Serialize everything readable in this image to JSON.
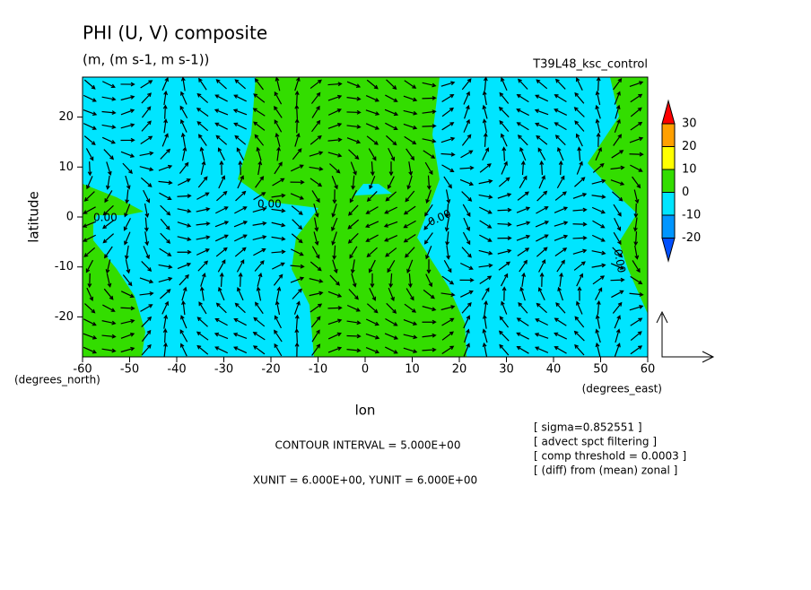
{
  "chart_data": {
    "type": "contour",
    "title": "PHI (U, V) composite",
    "subtitle": "(m, (m s-1, m s-1))",
    "run_label": "T39L48_ksc_control",
    "x_label": "lon",
    "y_label": "latitude",
    "x_units": "(degrees_east)",
    "y_units": "(degrees_north)",
    "xlim": [
      -60,
      60
    ],
    "xticks": [
      -60,
      -50,
      -40,
      -30,
      -20,
      -10,
      0,
      10,
      20,
      30,
      40,
      50,
      60
    ],
    "ylim": [
      -28,
      28
    ],
    "yticks": [
      -20,
      -10,
      0,
      10,
      20
    ],
    "contour_labels": [
      "0.00",
      "0.00",
      "0.00",
      "0.00"
    ],
    "colorbar": {
      "levels": [
        -20,
        -10,
        0,
        10,
        20,
        30
      ],
      "colors": [
        "#0050ff",
        "#0096ff",
        "#00e5ff",
        "#33dd00",
        "#ffff00",
        "#ffa000",
        "#ff0000"
      ]
    },
    "contour_interval": "CONTOUR INTERVAL = 5.000E+00",
    "vector_units": "XUNIT = 6.000E+00, YUNIT = 6.000E+00",
    "notes": [
      "[ sigma=0.852551 ]",
      "[ advect spct filtering ]",
      "[ comp threshold = 0.0003 ]",
      "[ (diff) from (mean) zonal ]"
    ]
  }
}
